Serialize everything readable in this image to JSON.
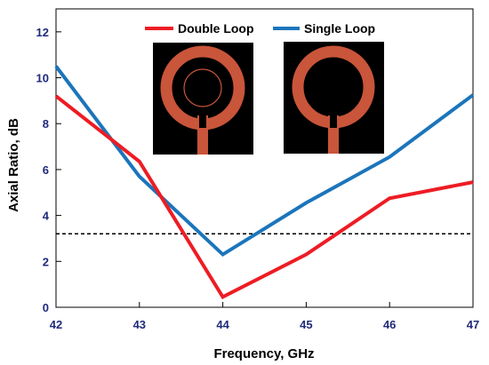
{
  "chart_data": {
    "type": "line",
    "xlabel": "Frequency, GHz",
    "ylabel": "Axial Ratio, dB",
    "xlim": [
      42,
      47
    ],
    "ylim": [
      0,
      13
    ],
    "x_ticks": [
      42,
      43,
      44,
      45,
      46,
      47
    ],
    "y_ticks": [
      0,
      2,
      4,
      6,
      8,
      10,
      12
    ],
    "x_tick_labels": [
      "42",
      "43",
      "44",
      "45",
      "46",
      "47"
    ],
    "y_tick_labels": [
      "0",
      "2",
      "4",
      "6",
      "8",
      "10",
      "12"
    ],
    "x": [
      42,
      43,
      44,
      45,
      46,
      47
    ],
    "series": [
      {
        "name": "Double Loop",
        "color": "#ee1c24",
        "values": [
          9.2,
          6.35,
          0.45,
          2.3,
          4.75,
          5.45
        ]
      },
      {
        "name": "Single Loop",
        "color": "#1b75bb",
        "values": [
          10.5,
          5.7,
          2.3,
          4.55,
          6.55,
          9.25
        ]
      }
    ],
    "reference_line": {
      "y": 3.2,
      "style": "dashed",
      "color": "#000000"
    },
    "legend_position": "top-center",
    "grid": false,
    "inset_images": [
      {
        "name": "double-loop-antenna-photo",
        "description_icon": "double-ring-antenna"
      },
      {
        "name": "single-loop-antenna-photo",
        "description_icon": "single-ring-antenna"
      }
    ]
  }
}
